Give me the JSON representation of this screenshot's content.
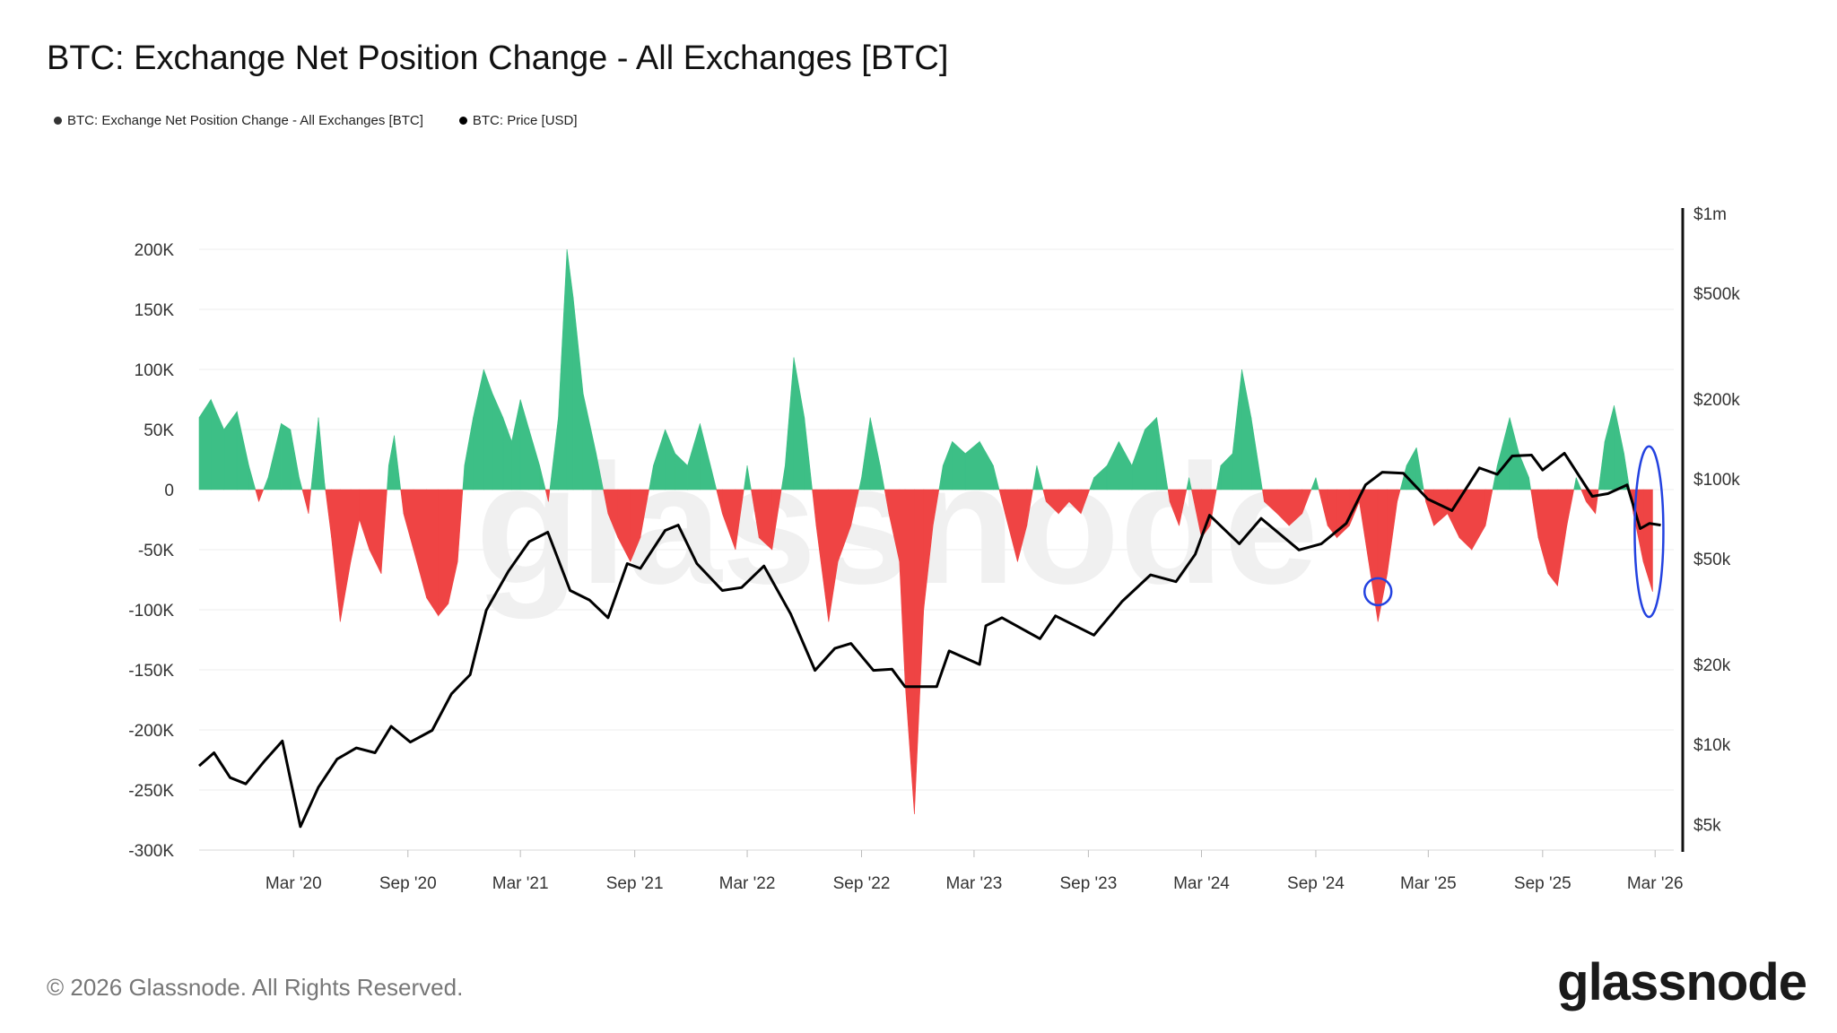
{
  "header": {
    "title": "BTC: Exchange Net Position Change - All Exchanges [BTC]"
  },
  "legend": {
    "items": [
      {
        "label": "BTC: Exchange Net Position Change - All Exchanges [BTC]",
        "color": "#333333"
      },
      {
        "label": "BTC: Price [USD]",
        "color": "#000000"
      }
    ]
  },
  "footer": {
    "copyright": "© 2026 Glassnode. All Rights Reserved.",
    "brand": "glassnode",
    "watermark": "glassnode"
  },
  "colors": {
    "positive": "#3dbf86",
    "negative": "#ef4444",
    "price": "#000000",
    "highlight": "#2342e0",
    "grid": "#ececec"
  },
  "chart_data": {
    "type": "area",
    "x_ticks": [
      "Mar '20",
      "Sep '20",
      "Mar '21",
      "Sep '21",
      "Mar '22",
      "Sep '22",
      "Mar '23",
      "Sep '23",
      "Mar '24",
      "Sep '24",
      "Mar '25",
      "Sep '25",
      "Mar '26"
    ],
    "y_left": {
      "ticks": [
        200000,
        150000,
        100000,
        50000,
        0,
        -50000,
        -100000,
        -150000,
        -200000,
        -250000,
        -300000
      ],
      "tick_labels": [
        "200K",
        "150K",
        "100K",
        "50K",
        "0",
        "-50K",
        "-100K",
        "-150K",
        "-200K",
        "-250K",
        "-300K"
      ],
      "range": [
        -300000,
        200000
      ]
    },
    "y_right": {
      "scale": "log",
      "ticks": [
        1000000,
        500000,
        200000,
        100000,
        50000,
        20000,
        10000,
        5000
      ],
      "tick_labels": [
        "$1m",
        "$500k",
        "$200k",
        "$100k",
        "$50k",
        "$20k",
        "$10k",
        "$5k"
      ],
      "range": [
        4000,
        1000000
      ]
    },
    "grid": true,
    "legend_placement": "top-left",
    "series": [
      {
        "name": "BTC: Exchange Net Position Change - All Exchanges [BTC]",
        "axis": "left",
        "points": [
          [
            "2019-10-01",
            60000
          ],
          [
            "2019-10-20",
            75000
          ],
          [
            "2019-11-10",
            50000
          ],
          [
            "2019-12-01",
            65000
          ],
          [
            "2019-12-20",
            20000
          ],
          [
            "2020-01-05",
            -10000
          ],
          [
            "2020-01-20",
            10000
          ],
          [
            "2020-02-10",
            55000
          ],
          [
            "2020-02-25",
            50000
          ],
          [
            "2020-03-10",
            10000
          ],
          [
            "2020-03-25",
            -20000
          ],
          [
            "2020-04-10",
            60000
          ],
          [
            "2020-04-20",
            5000
          ],
          [
            "2020-05-01",
            -40000
          ],
          [
            "2020-05-15",
            -110000
          ],
          [
            "2020-06-01",
            -60000
          ],
          [
            "2020-06-15",
            -25000
          ],
          [
            "2020-07-01",
            -50000
          ],
          [
            "2020-07-20",
            -70000
          ],
          [
            "2020-08-01",
            20000
          ],
          [
            "2020-08-10",
            45000
          ],
          [
            "2020-08-25",
            -20000
          ],
          [
            "2020-09-10",
            -50000
          ],
          [
            "2020-10-01",
            -90000
          ],
          [
            "2020-10-20",
            -105000
          ],
          [
            "2020-11-05",
            -95000
          ],
          [
            "2020-11-20",
            -60000
          ],
          [
            "2020-12-01",
            20000
          ],
          [
            "2020-12-15",
            60000
          ],
          [
            "2021-01-01",
            100000
          ],
          [
            "2021-01-15",
            80000
          ],
          [
            "2021-02-01",
            60000
          ],
          [
            "2021-02-15",
            40000
          ],
          [
            "2021-03-01",
            75000
          ],
          [
            "2021-03-15",
            50000
          ],
          [
            "2021-04-01",
            20000
          ],
          [
            "2021-04-15",
            -10000
          ],
          [
            "2021-05-01",
            60000
          ],
          [
            "2021-05-15",
            200000
          ],
          [
            "2021-05-25",
            160000
          ],
          [
            "2021-06-10",
            80000
          ],
          [
            "2021-07-01",
            30000
          ],
          [
            "2021-07-20",
            -20000
          ],
          [
            "2021-08-05",
            -40000
          ],
          [
            "2021-08-25",
            -60000
          ],
          [
            "2021-09-10",
            -40000
          ],
          [
            "2021-10-01",
            20000
          ],
          [
            "2021-10-20",
            50000
          ],
          [
            "2021-11-05",
            30000
          ],
          [
            "2021-11-25",
            20000
          ],
          [
            "2021-12-15",
            55000
          ],
          [
            "2022-01-01",
            20000
          ],
          [
            "2022-01-20",
            -20000
          ],
          [
            "2022-02-10",
            -50000
          ],
          [
            "2022-03-01",
            20000
          ],
          [
            "2022-03-20",
            -40000
          ],
          [
            "2022-04-10",
            -50000
          ],
          [
            "2022-05-01",
            20000
          ],
          [
            "2022-05-15",
            110000
          ],
          [
            "2022-06-01",
            60000
          ],
          [
            "2022-06-20",
            -30000
          ],
          [
            "2022-07-10",
            -110000
          ],
          [
            "2022-07-25",
            -60000
          ],
          [
            "2022-08-15",
            -30000
          ],
          [
            "2022-09-01",
            10000
          ],
          [
            "2022-09-15",
            60000
          ],
          [
            "2022-10-01",
            20000
          ],
          [
            "2022-10-15",
            -20000
          ],
          [
            "2022-11-01",
            -60000
          ],
          [
            "2022-11-10",
            -160000
          ],
          [
            "2022-11-25",
            -270000
          ],
          [
            "2022-12-10",
            -100000
          ],
          [
            "2022-12-25",
            -30000
          ],
          [
            "2023-01-10",
            20000
          ],
          [
            "2023-01-25",
            40000
          ],
          [
            "2023-02-15",
            30000
          ],
          [
            "2023-03-10",
            40000
          ],
          [
            "2023-04-01",
            20000
          ],
          [
            "2023-04-20",
            -20000
          ],
          [
            "2023-05-10",
            -60000
          ],
          [
            "2023-05-25",
            -30000
          ],
          [
            "2023-06-10",
            20000
          ],
          [
            "2023-06-25",
            -10000
          ],
          [
            "2023-07-15",
            -20000
          ],
          [
            "2023-08-01",
            -10000
          ],
          [
            "2023-08-20",
            -20000
          ],
          [
            "2023-09-10",
            10000
          ],
          [
            "2023-10-01",
            20000
          ],
          [
            "2023-10-20",
            40000
          ],
          [
            "2023-11-10",
            20000
          ],
          [
            "2023-12-01",
            50000
          ],
          [
            "2023-12-20",
            60000
          ],
          [
            "2024-01-10",
            -10000
          ],
          [
            "2024-01-25",
            -30000
          ],
          [
            "2024-02-10",
            10000
          ],
          [
            "2024-03-01",
            -40000
          ],
          [
            "2024-03-15",
            -30000
          ],
          [
            "2024-04-01",
            20000
          ],
          [
            "2024-04-20",
            30000
          ],
          [
            "2024-05-05",
            100000
          ],
          [
            "2024-05-20",
            60000
          ],
          [
            "2024-06-10",
            -10000
          ],
          [
            "2024-07-01",
            -20000
          ],
          [
            "2024-07-20",
            -30000
          ],
          [
            "2024-08-10",
            -20000
          ],
          [
            "2024-09-01",
            10000
          ],
          [
            "2024-09-20",
            -30000
          ],
          [
            "2024-10-05",
            -40000
          ],
          [
            "2024-10-25",
            -30000
          ],
          [
            "2024-11-10",
            -10000
          ],
          [
            "2024-11-25",
            -60000
          ],
          [
            "2024-12-10",
            -110000
          ],
          [
            "2024-12-25",
            -70000
          ],
          [
            "2025-01-10",
            -10000
          ],
          [
            "2025-01-25",
            20000
          ],
          [
            "2025-02-10",
            35000
          ],
          [
            "2025-02-25",
            -10000
          ],
          [
            "2025-03-10",
            -30000
          ],
          [
            "2025-04-01",
            -20000
          ],
          [
            "2025-04-20",
            -40000
          ],
          [
            "2025-05-10",
            -50000
          ],
          [
            "2025-06-01",
            -30000
          ],
          [
            "2025-06-20",
            20000
          ],
          [
            "2025-07-10",
            60000
          ],
          [
            "2025-07-25",
            30000
          ],
          [
            "2025-08-10",
            10000
          ],
          [
            "2025-08-25",
            -40000
          ],
          [
            "2025-09-10",
            -70000
          ],
          [
            "2025-09-25",
            -80000
          ],
          [
            "2025-10-10",
            -30000
          ],
          [
            "2025-10-25",
            10000
          ],
          [
            "2025-11-10",
            -10000
          ],
          [
            "2025-11-25",
            -20000
          ],
          [
            "2025-12-10",
            40000
          ],
          [
            "2025-12-25",
            70000
          ],
          [
            "2026-01-10",
            30000
          ],
          [
            "2026-01-25",
            -20000
          ],
          [
            "2026-02-10",
            -60000
          ],
          [
            "2026-02-25",
            -85000
          ]
        ]
      },
      {
        "name": "BTC: Price [USD]",
        "axis": "right",
        "points": [
          [
            "2019-10-01",
            8300
          ],
          [
            "2019-10-25",
            9300
          ],
          [
            "2019-11-20",
            7500
          ],
          [
            "2019-12-15",
            7100
          ],
          [
            "2020-01-15",
            8700
          ],
          [
            "2020-02-12",
            10300
          ],
          [
            "2020-03-12",
            4900
          ],
          [
            "2020-04-10",
            6900
          ],
          [
            "2020-05-10",
            8800
          ],
          [
            "2020-06-10",
            9700
          ],
          [
            "2020-07-10",
            9300
          ],
          [
            "2020-08-05",
            11700
          ],
          [
            "2020-09-05",
            10200
          ],
          [
            "2020-10-10",
            11300
          ],
          [
            "2020-11-10",
            15500
          ],
          [
            "2020-12-10",
            18300
          ],
          [
            "2021-01-05",
            32000
          ],
          [
            "2021-02-10",
            45000
          ],
          [
            "2021-03-15",
            58000
          ],
          [
            "2021-04-14",
            63000
          ],
          [
            "2021-05-20",
            38000
          ],
          [
            "2021-06-20",
            35000
          ],
          [
            "2021-07-20",
            30000
          ],
          [
            "2021-08-20",
            48000
          ],
          [
            "2021-09-10",
            46000
          ],
          [
            "2021-10-20",
            64000
          ],
          [
            "2021-11-10",
            67000
          ],
          [
            "2021-12-10",
            48000
          ],
          [
            "2022-01-20",
            38000
          ],
          [
            "2022-02-20",
            39000
          ],
          [
            "2022-03-28",
            47000
          ],
          [
            "2022-05-10",
            31000
          ],
          [
            "2022-06-18",
            19000
          ],
          [
            "2022-07-20",
            23000
          ],
          [
            "2022-08-15",
            24000
          ],
          [
            "2022-09-20",
            19000
          ],
          [
            "2022-10-20",
            19200
          ],
          [
            "2022-11-10",
            16500
          ],
          [
            "2022-12-31",
            16500
          ],
          [
            "2023-01-20",
            22500
          ],
          [
            "2023-03-10",
            20000
          ],
          [
            "2023-03-20",
            28000
          ],
          [
            "2023-04-15",
            30000
          ],
          [
            "2023-06-15",
            25000
          ],
          [
            "2023-07-10",
            30500
          ],
          [
            "2023-09-10",
            25800
          ],
          [
            "2023-10-25",
            34500
          ],
          [
            "2023-12-10",
            43500
          ],
          [
            "2024-01-20",
            41000
          ],
          [
            "2024-02-20",
            52000
          ],
          [
            "2024-03-14",
            73000
          ],
          [
            "2024-05-01",
            57000
          ],
          [
            "2024-06-05",
            71000
          ],
          [
            "2024-08-05",
            54000
          ],
          [
            "2024-09-10",
            57000
          ],
          [
            "2024-10-20",
            68000
          ],
          [
            "2024-11-20",
            95000
          ],
          [
            "2024-12-17",
            106000
          ],
          [
            "2025-01-20",
            105000
          ],
          [
            "2025-02-28",
            84000
          ],
          [
            "2025-04-08",
            76000
          ],
          [
            "2025-05-22",
            110000
          ],
          [
            "2025-06-20",
            104000
          ],
          [
            "2025-07-14",
            122000
          ],
          [
            "2025-08-14",
            123000
          ],
          [
            "2025-09-01",
            108000
          ],
          [
            "2025-10-06",
            125000
          ],
          [
            "2025-11-20",
            86000
          ],
          [
            "2025-12-15",
            88000
          ],
          [
            "2026-01-15",
            95000
          ],
          [
            "2026-02-05",
            65000
          ],
          [
            "2026-02-20",
            68000
          ],
          [
            "2026-03-10",
            67000
          ]
        ]
      }
    ],
    "annotations": [
      {
        "type": "circle",
        "date": "2024-12-10",
        "value": -85000
      },
      {
        "type": "ellipse",
        "date": "2026-02-25",
        "value_range": [
          -100000,
          30000
        ]
      }
    ]
  }
}
